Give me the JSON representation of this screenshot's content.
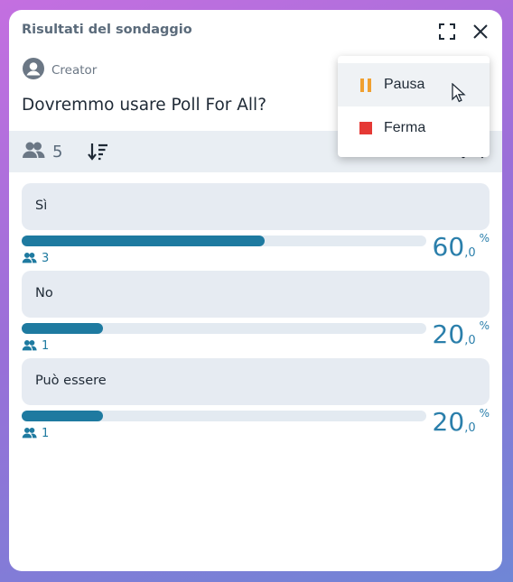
{
  "panel": {
    "title": "Risultati del sondaggio",
    "creator_label": "Creator",
    "question": "Dovremmo usare Poll For All?"
  },
  "toolbar": {
    "participants": "5"
  },
  "options": [
    {
      "label": "Sì",
      "votes": "3",
      "percent_main": "60",
      "percent_dec": ",0",
      "percent_sign": "%",
      "fill": 0.6
    },
    {
      "label": "No",
      "votes": "1",
      "percent_main": "20",
      "percent_dec": ",0",
      "percent_sign": "%",
      "fill": 0.2
    },
    {
      "label": "Può essere",
      "votes": "1",
      "percent_main": "20",
      "percent_dec": ",0",
      "percent_sign": "%",
      "fill": 0.2
    }
  ],
  "menu": {
    "items": [
      {
        "label": "Pausa",
        "icon": "pause-icon",
        "color": "#f0a030"
      },
      {
        "label": "Ferma",
        "icon": "stop-icon",
        "color": "#e53935"
      }
    ]
  },
  "colors": {
    "accent": "#1e7aa0",
    "option_bg": "#e6ebf2"
  }
}
